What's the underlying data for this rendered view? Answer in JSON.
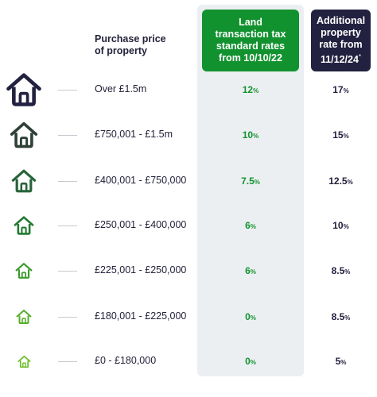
{
  "header": {
    "purchase_price": "Purchase price of property",
    "standard_rates": "Land transaction tax standard rates from 10/10/22",
    "additional_rates_line1": "Additional property rate from",
    "additional_rates_line2": "11/12/24",
    "additional_rates_mark": "*"
  },
  "rows": [
    {
      "band": "Over £1.5m",
      "standard": "12",
      "additional": "17",
      "icon_color": "#232140"
    },
    {
      "band": "£750,001 - £1.5m",
      "standard": "10",
      "additional": "15",
      "icon_color": "#2f4137"
    },
    {
      "band": "£400,001 - £750,000",
      "standard": "7.5",
      "additional": "12.5",
      "icon_color": "#28643a"
    },
    {
      "band": "£250,001 - £400,000",
      "standard": "6",
      "additional": "10",
      "icon_color": "#247a34"
    },
    {
      "band": "£225,001 - £250,000",
      "standard": "6",
      "additional": "8.5",
      "icon_color": "#3d9a2e"
    },
    {
      "band": "£180,001 - £225,000",
      "standard": "0",
      "additional": "8.5",
      "icon_color": "#57ad29"
    },
    {
      "band": "£0 - £180,000",
      "standard": "0",
      "additional": "5",
      "icon_color": "#6cbb27"
    }
  ],
  "percent_symbol": "%",
  "colors": {
    "standard_accent": "#12922f",
    "additional_accent": "#232140",
    "column_band": "#eceff2"
  }
}
